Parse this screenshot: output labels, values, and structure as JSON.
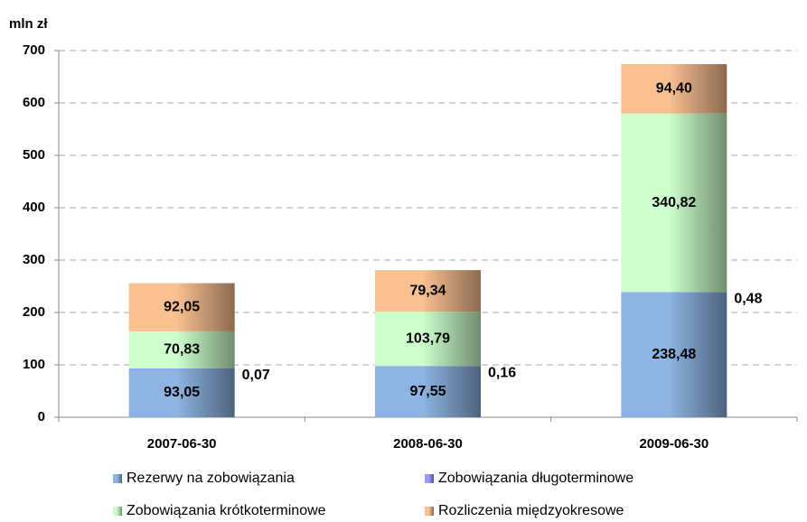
{
  "chart_data": {
    "type": "stacked_bar",
    "y_axis_label": "mln zł",
    "categories": [
      "2007-06-30",
      "2008-06-30",
      "2009-06-30"
    ],
    "ylim": [
      0,
      700
    ],
    "yticks": [
      0,
      100,
      200,
      300,
      400,
      500,
      600,
      700
    ],
    "grid": true,
    "legend": "bottom",
    "series": [
      {
        "name": "Rezerwy na zobowiązania",
        "color": "#8db4e2",
        "values": [
          93.05,
          97.55,
          238.48
        ],
        "value_labels": [
          "93,05",
          "97,55",
          "238,48"
        ]
      },
      {
        "name": "Zobowiązania długoterminowe",
        "color": "#9999ff",
        "values": [
          0.07,
          0.16,
          0.48
        ],
        "value_labels": [
          "0,07",
          "0,16",
          "0,48"
        ]
      },
      {
        "name": "Zobowiązania krótkoterminowe",
        "color": "#ccffcc",
        "values": [
          70.83,
          103.79,
          340.82
        ],
        "value_labels": [
          "70,83",
          "103,79",
          "340,82"
        ]
      },
      {
        "name": "Rozliczenia międzyokresowe",
        "color": "#fac090",
        "values": [
          92.05,
          79.34,
          94.4
        ],
        "value_labels": [
          "92,05",
          "79,34",
          "94,40"
        ]
      }
    ]
  }
}
